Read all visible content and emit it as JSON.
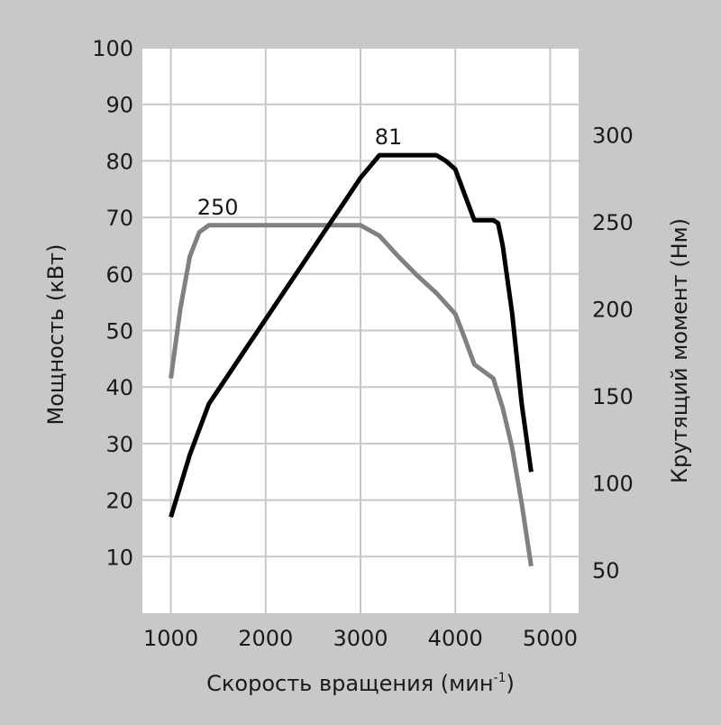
{
  "chart_data": {
    "type": "line",
    "xlabel": "Скорость вращения (мин",
    "xlabel_sup": "-1",
    "xlabel_end": ")",
    "ylabel_left": "Мощность (кВт)",
    "ylabel_right": "Крутящий момент (Нм)",
    "xlim": [
      700,
      5300
    ],
    "ylim_left": [
      0,
      100
    ],
    "ylim_right": [
      25,
      350
    ],
    "x_ticks": [
      1000,
      2000,
      3000,
      4000,
      5000
    ],
    "y_ticks_left": [
      10,
      20,
      30,
      40,
      50,
      60,
      70,
      80,
      90,
      100
    ],
    "y_ticks_right": [
      50,
      100,
      150,
      200,
      250,
      300
    ],
    "grid": true,
    "colors": {
      "background": "#c8c8c8",
      "plot_area": "#ffffff",
      "grid": "#c8c8c8",
      "power": "#000000",
      "torque": "#808080"
    },
    "series": [
      {
        "key": "power",
        "axis": "left",
        "points": [
          [
            1000,
            17
          ],
          [
            1200,
            28
          ],
          [
            1400,
            37
          ],
          [
            1600,
            42
          ],
          [
            1800,
            47
          ],
          [
            2000,
            52
          ],
          [
            2200,
            57
          ],
          [
            2400,
            62
          ],
          [
            2600,
            67
          ],
          [
            2800,
            72
          ],
          [
            3000,
            77
          ],
          [
            3100,
            79
          ],
          [
            3200,
            81
          ],
          [
            3400,
            81
          ],
          [
            3600,
            81
          ],
          [
            3800,
            81
          ],
          [
            3900,
            80
          ],
          [
            4000,
            78.5
          ],
          [
            4100,
            74
          ],
          [
            4200,
            69.5
          ],
          [
            4300,
            69.5
          ],
          [
            4400,
            69.5
          ],
          [
            4450,
            69
          ],
          [
            4500,
            65
          ],
          [
            4600,
            53
          ],
          [
            4700,
            37
          ],
          [
            4800,
            25
          ]
        ]
      },
      {
        "key": "torque",
        "axis": "right",
        "points": [
          [
            1000,
            160
          ],
          [
            1100,
            200
          ],
          [
            1200,
            230
          ],
          [
            1300,
            244
          ],
          [
            1400,
            248
          ],
          [
            1600,
            248
          ],
          [
            2000,
            248
          ],
          [
            2500,
            248
          ],
          [
            3000,
            248
          ],
          [
            3200,
            242
          ],
          [
            3400,
            230
          ],
          [
            3600,
            219
          ],
          [
            3800,
            209
          ],
          [
            4000,
            197
          ],
          [
            4100,
            183
          ],
          [
            4200,
            168
          ],
          [
            4400,
            160
          ],
          [
            4500,
            143
          ],
          [
            4600,
            120
          ],
          [
            4700,
            88
          ],
          [
            4800,
            52
          ]
        ]
      }
    ],
    "annotations": [
      {
        "text": "81",
        "x": 3200,
        "y": 81,
        "axis": "left"
      },
      {
        "text": "250",
        "x": 1400,
        "y": 248,
        "axis": "right"
      }
    ]
  }
}
